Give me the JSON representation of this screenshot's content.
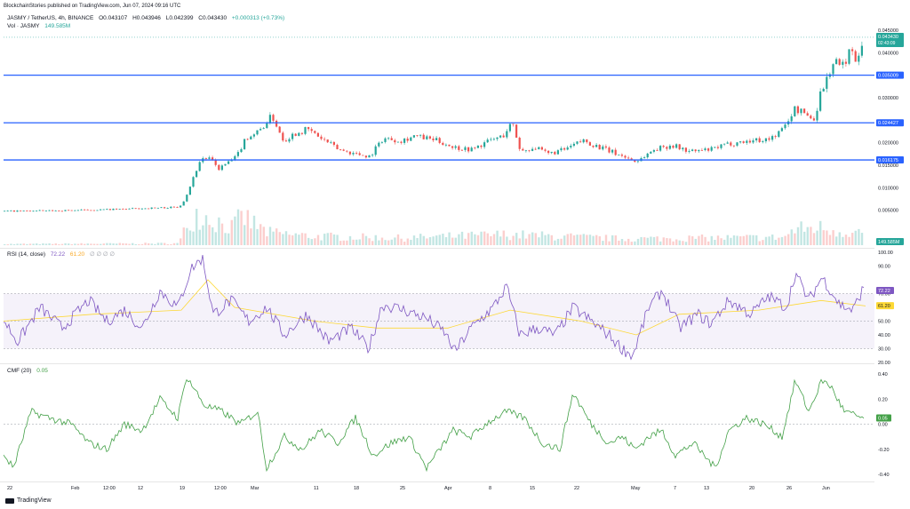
{
  "header": {
    "publisher": "BlockchainStories published on TradingView.com, Jun 07, 2024 09:16 UTC"
  },
  "price_legend": {
    "symbol": "JASMY / TetherUS, 4h, BINANCE",
    "open": "O0.043107",
    "high": "H0.043946",
    "low": "L0.042399",
    "close": "C0.043430",
    "change": "+0.000313 (+0.73%)",
    "volume_label": "Vol · JASMY",
    "volume_value": "149.585M"
  },
  "rsi_legend": {
    "label": "RSI (14, close)",
    "rsi_value": "72.22",
    "ma_value": "61.20",
    "extras": "∅ ∅ ∅ ∅"
  },
  "cmf_legend": {
    "label": "CMF (20)",
    "value": "0.05"
  },
  "badges": {
    "last_price": "0.043430",
    "countdown": "02:43:09",
    "volume": "149.585M",
    "rsi": "72.22",
    "rsi_ma": "61.20",
    "cmf": "0.05"
  },
  "footer": {
    "brand": "TradingView"
  },
  "colors": {
    "up": "#26a69a",
    "down": "#ef5350",
    "level": "#2962ff",
    "rsi": "#7e57c2",
    "rsi_ma": "#fdd835",
    "cmf": "#43a047"
  },
  "chart_data": [
    {
      "type": "candlestick",
      "y_ticks": [
        "0.045000",
        "0.040000",
        "0.030000",
        "0.020000",
        "0.015000",
        "0.010000",
        "0.005000"
      ],
      "x_ticks": [
        "22",
        "Feb",
        "12:00",
        "12",
        "19",
        "12:00",
        "Mar",
        "11",
        "18",
        "25",
        "Apr",
        "8",
        "15",
        "22",
        "May",
        "7",
        "13",
        "20",
        "26",
        "Jun"
      ],
      "horizontal_levels": [
        {
          "value": 0.035009,
          "label": "0.035009"
        },
        {
          "value": 0.024427,
          "label": "0.024427"
        },
        {
          "value": 0.016175,
          "label": "0.016175"
        }
      ],
      "price_path": [
        [
          0,
          0.0048
        ],
        [
          60,
          0.0049
        ],
        [
          130,
          0.0052
        ],
        [
          200,
          0.0057
        ],
        [
          207,
          0.0075
        ],
        [
          215,
          0.0115
        ],
        [
          225,
          0.0165
        ],
        [
          235,
          0.0165
        ],
        [
          245,
          0.0142
        ],
        [
          255,
          0.0155
        ],
        [
          265,
          0.0168
        ],
        [
          275,
          0.021
        ],
        [
          290,
          0.0225
        ],
        [
          305,
          0.026
        ],
        [
          318,
          0.0205
        ],
        [
          330,
          0.022
        ],
        [
          345,
          0.023
        ],
        [
          360,
          0.021
        ],
        [
          380,
          0.0185
        ],
        [
          400,
          0.0175
        ],
        [
          415,
          0.017
        ],
        [
          430,
          0.021
        ],
        [
          450,
          0.0205
        ],
        [
          465,
          0.0215
        ],
        [
          490,
          0.0205
        ],
        [
          510,
          0.019
        ],
        [
          530,
          0.0185
        ],
        [
          550,
          0.0205
        ],
        [
          565,
          0.0215
        ],
        [
          575,
          0.0245
        ],
        [
          585,
          0.018
        ],
        [
          600,
          0.019
        ],
        [
          615,
          0.0175
        ],
        [
          635,
          0.0185
        ],
        [
          655,
          0.0205
        ],
        [
          680,
          0.0185
        ],
        [
          700,
          0.017
        ],
        [
          715,
          0.0158
        ],
        [
          735,
          0.0185
        ],
        [
          755,
          0.0195
        ],
        [
          775,
          0.018
        ],
        [
          800,
          0.0185
        ],
        [
          820,
          0.0198
        ],
        [
          845,
          0.0205
        ],
        [
          865,
          0.0208
        ],
        [
          880,
          0.023
        ],
        [
          893,
          0.0275
        ],
        [
          905,
          0.0265
        ],
        [
          915,
          0.025
        ],
        [
          922,
          0.031
        ],
        [
          930,
          0.0345
        ],
        [
          938,
          0.0385
        ],
        [
          946,
          0.0365
        ],
        [
          955,
          0.0405
        ],
        [
          963,
          0.0385
        ],
        [
          970,
          0.0434
        ]
      ],
      "volume_path": [
        [
          0,
          0.03
        ],
        [
          200,
          0.05
        ],
        [
          210,
          0.6
        ],
        [
          220,
          0.9
        ],
        [
          240,
          0.7
        ],
        [
          260,
          0.5
        ],
        [
          272,
          0.8
        ],
        [
          300,
          0.35
        ],
        [
          350,
          0.25
        ],
        [
          450,
          0.2
        ],
        [
          570,
          0.3
        ],
        [
          700,
          0.18
        ],
        [
          880,
          0.22
        ],
        [
          895,
          0.45
        ],
        [
          920,
          0.5
        ],
        [
          945,
          0.4
        ],
        [
          970,
          0.35
        ]
      ]
    },
    {
      "type": "line",
      "name": "RSI",
      "y_ticks": [
        "100.00",
        "90.00",
        "70.00",
        "60.00",
        "50.00",
        "40.00",
        "30.00",
        "20.00"
      ],
      "band": [
        30,
        70
      ],
      "path": [
        [
          0,
          55
        ],
        [
          20,
          35
        ],
        [
          45,
          60
        ],
        [
          70,
          45
        ],
        [
          100,
          65
        ],
        [
          120,
          50
        ],
        [
          140,
          58
        ],
        [
          160,
          45
        ],
        [
          180,
          72
        ],
        [
          200,
          60
        ],
        [
          215,
          88
        ],
        [
          228,
          96
        ],
        [
          240,
          55
        ],
        [
          260,
          65
        ],
        [
          280,
          50
        ],
        [
          300,
          60
        ],
        [
          320,
          40
        ],
        [
          345,
          55
        ],
        [
          370,
          35
        ],
        [
          395,
          45
        ],
        [
          415,
          30
        ],
        [
          430,
          62
        ],
        [
          455,
          58
        ],
        [
          480,
          52
        ],
        [
          500,
          42
        ],
        [
          512,
          28
        ],
        [
          530,
          45
        ],
        [
          555,
          60
        ],
        [
          570,
          75
        ],
        [
          585,
          40
        ],
        [
          605,
          45
        ],
        [
          625,
          40
        ],
        [
          645,
          60
        ],
        [
          665,
          50
        ],
        [
          685,
          40
        ],
        [
          700,
          30
        ],
        [
          712,
          25
        ],
        [
          730,
          60
        ],
        [
          745,
          72
        ],
        [
          765,
          45
        ],
        [
          785,
          55
        ],
        [
          800,
          48
        ],
        [
          820,
          65
        ],
        [
          845,
          55
        ],
        [
          865,
          68
        ],
        [
          885,
          60
        ],
        [
          895,
          85
        ],
        [
          910,
          65
        ],
        [
          925,
          82
        ],
        [
          945,
          62
        ],
        [
          960,
          58
        ],
        [
          970,
          72
        ]
      ],
      "ma_path": [
        [
          0,
          50
        ],
        [
          100,
          55
        ],
        [
          200,
          58
        ],
        [
          230,
          80
        ],
        [
          260,
          60
        ],
        [
          350,
          50
        ],
        [
          420,
          45
        ],
        [
          500,
          45
        ],
        [
          570,
          58
        ],
        [
          650,
          50
        ],
        [
          712,
          40
        ],
        [
          760,
          55
        ],
        [
          850,
          58
        ],
        [
          920,
          65
        ],
        [
          970,
          61
        ]
      ]
    },
    {
      "type": "line",
      "name": "CMF",
      "y_ticks": [
        "0.40",
        "0.20",
        "0.00",
        "-0.20",
        "-0.40"
      ],
      "path": [
        [
          0,
          -0.2
        ],
        [
          15,
          -0.35
        ],
        [
          35,
          0.1
        ],
        [
          55,
          0.05
        ],
        [
          80,
          0.0
        ],
        [
          100,
          -0.15
        ],
        [
          120,
          -0.2
        ],
        [
          140,
          0.0
        ],
        [
          160,
          -0.05
        ],
        [
          180,
          0.2
        ],
        [
          200,
          0.05
        ],
        [
          210,
          0.38
        ],
        [
          230,
          0.15
        ],
        [
          250,
          0.1
        ],
        [
          270,
          0.0
        ],
        [
          290,
          0.1
        ],
        [
          300,
          -0.35
        ],
        [
          320,
          -0.1
        ],
        [
          340,
          -0.2
        ],
        [
          360,
          -0.05
        ],
        [
          380,
          -0.15
        ],
        [
          400,
          0.05
        ],
        [
          420,
          -0.25
        ],
        [
          440,
          -0.15
        ],
        [
          460,
          -0.1
        ],
        [
          480,
          -0.35
        ],
        [
          495,
          -0.2
        ],
        [
          510,
          -0.05
        ],
        [
          530,
          -0.1
        ],
        [
          550,
          0.02
        ],
        [
          570,
          0.1
        ],
        [
          590,
          0.05
        ],
        [
          610,
          -0.15
        ],
        [
          630,
          -0.2
        ],
        [
          645,
          0.25
        ],
        [
          665,
          0.0
        ],
        [
          685,
          -0.15
        ],
        [
          700,
          -0.1
        ],
        [
          715,
          -0.2
        ],
        [
          730,
          -0.1
        ],
        [
          745,
          -0.05
        ],
        [
          760,
          -0.25
        ],
        [
          780,
          -0.15
        ],
        [
          805,
          -0.35
        ],
        [
          820,
          -0.05
        ],
        [
          840,
          0.05
        ],
        [
          860,
          0.0
        ],
        [
          880,
          -0.1
        ],
        [
          895,
          0.35
        ],
        [
          910,
          0.1
        ],
        [
          925,
          0.35
        ],
        [
          935,
          0.3
        ],
        [
          950,
          0.1
        ],
        [
          970,
          0.05
        ]
      ]
    }
  ]
}
